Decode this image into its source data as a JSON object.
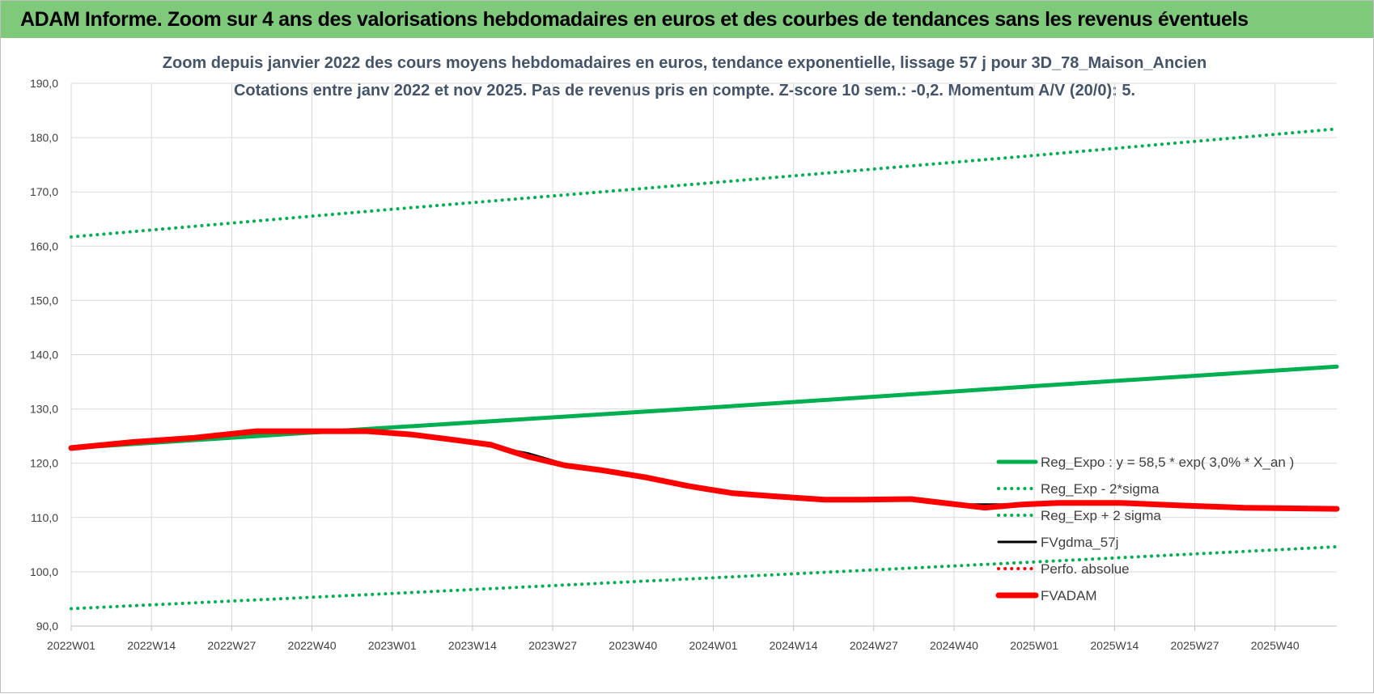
{
  "banner": {
    "title": "ADAM Informe. Zoom sur 4 ans des valorisations hebdomadaires en euros et des courbes de tendances sans les revenus éventuels",
    "color": "#7fc97a"
  },
  "chart_data": {
    "type": "line",
    "title_line1": "Zoom depuis janvier 2022 des cours moyens hebdomadaires en euros, tendance exponentielle, lissage 57 j pour 3D_78_Maison_Ancien",
    "title_line2": "Cotations entre janv 2022 et nov 2025. Pas de revenus pris en compte. Z-score 10 sem.: -0,2. Momentum A/V (20/0): 5.",
    "xlabel": "",
    "ylabel": "",
    "ylim": [
      90,
      190
    ],
    "ytick_labels": [
      "90,0",
      "100,0",
      "110,0",
      "120,0",
      "130,0",
      "140,0",
      "150,0",
      "160,0",
      "170,0",
      "180,0",
      "190,0"
    ],
    "x_tick_labels": [
      "2022W01",
      "2022W14",
      "2022W27",
      "2022W40",
      "2023W01",
      "2023W14",
      "2023W27",
      "2023W40",
      "2024W01",
      "2024W14",
      "2024W27",
      "2024W40",
      "2025W01",
      "2025W14",
      "2025W27",
      "2025W40"
    ],
    "x_tick_index": [
      0,
      13,
      26,
      39,
      52,
      65,
      78,
      91,
      104,
      117,
      130,
      143,
      156,
      169,
      182,
      195
    ],
    "n_weeks": 206,
    "grid": true,
    "legend_position": "right",
    "series": [
      {
        "name": "Reg_Expo : y = 58,5 * exp( 3,0% *  X_an )",
        "color": "#00b050",
        "style": "solid-thick",
        "x": [
          0,
          52,
          104,
          156,
          205
        ],
        "y": [
          122.8,
          126.6,
          130.3,
          134.2,
          137.8
        ]
      },
      {
        "name": "Reg_Exp - 2*sigma",
        "color": "#00b050",
        "style": "dotted",
        "x": [
          0,
          52,
          104,
          156,
          205
        ],
        "y": [
          93.2,
          96.0,
          98.9,
          101.8,
          104.6
        ]
      },
      {
        "name": "Reg_Exp + 2 sigma",
        "color": "#00b050",
        "style": "dotted",
        "x": [
          0,
          52,
          104,
          156,
          205
        ],
        "y": [
          161.7,
          166.8,
          171.7,
          176.7,
          181.6
        ]
      },
      {
        "name": "FVgdma_57j",
        "color": "#000000",
        "style": "solid",
        "x": [
          0,
          10,
          20,
          30,
          40,
          48,
          55,
          62,
          68,
          74,
          80,
          86,
          93,
          100,
          107,
          114,
          122,
          128,
          136,
          142,
          148,
          154,
          160,
          170,
          180,
          190,
          205
        ],
        "y": [
          122.8,
          123.9,
          124.6,
          125.6,
          125.8,
          125.8,
          125.2,
          124.1,
          123.1,
          121.8,
          119.8,
          118.8,
          117.6,
          116.0,
          114.7,
          114.0,
          113.4,
          113.4,
          113.4,
          112.4,
          112.4,
          112.4,
          112.6,
          112.6,
          112.2,
          111.8,
          111.6
        ]
      },
      {
        "name": "Perfo. absolue",
        "color": "#ff0000",
        "style": "dotted",
        "x": [],
        "y": []
      },
      {
        "name": "FVADAM",
        "color": "#ff0000",
        "style": "solid-thick",
        "x": [
          0,
          10,
          20,
          30,
          40,
          48,
          55,
          62,
          68,
          74,
          80,
          86,
          93,
          100,
          107,
          114,
          122,
          128,
          136,
          142,
          148,
          154,
          160,
          170,
          180,
          190,
          205
        ],
        "y": [
          122.8,
          123.9,
          124.7,
          125.9,
          125.9,
          125.9,
          125.3,
          124.3,
          123.4,
          121.2,
          119.6,
          118.7,
          117.4,
          115.8,
          114.5,
          113.9,
          113.3,
          113.3,
          113.4,
          112.6,
          111.8,
          112.4,
          112.7,
          112.7,
          112.2,
          111.8,
          111.6
        ]
      }
    ]
  }
}
